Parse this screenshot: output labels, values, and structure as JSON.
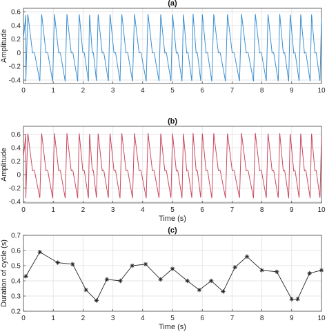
{
  "chart_data": [
    {
      "type": "line",
      "title": "(a)",
      "xlabel": "",
      "ylabel": "Amplitude",
      "xlim": [
        0,
        10
      ],
      "ylim": [
        -0.45,
        0.65
      ],
      "xticks": [
        "0",
        "1",
        "2",
        "3",
        "4",
        "5",
        "6",
        "7",
        "8",
        "9",
        "10"
      ],
      "yticks": [
        "-0.4",
        "-0.2",
        "0",
        "0.2",
        "0.4",
        "0.6"
      ],
      "grid": true,
      "color": "#3b8fd1",
      "beats": [
        0.08,
        0.55,
        0.98,
        1.4,
        1.82,
        2.18,
        2.45,
        2.85,
        3.24,
        3.66,
        4.12,
        4.55,
        4.95,
        5.32,
        5.65,
        5.95,
        6.32,
        6.78,
        7.25,
        7.72,
        8.15,
        8.55,
        8.9,
        9.25,
        9.62,
        9.95
      ],
      "peak": 0.57,
      "trough": -0.42
    },
    {
      "type": "line",
      "title": "(b)",
      "xlabel": "Time (s)",
      "ylabel": "Amplitude",
      "xlim": [
        0,
        10
      ],
      "ylim": [
        -0.42,
        0.72
      ],
      "xticks": [
        "0",
        "1",
        "2",
        "3",
        "4",
        "5",
        "6",
        "7",
        "8",
        "9",
        "10"
      ],
      "yticks": [
        "-0.4",
        "-0.2",
        "0",
        "0.2",
        "0.4",
        "0.6"
      ],
      "grid": true,
      "color": "#c8485f",
      "beats": [
        0.08,
        0.55,
        0.98,
        1.4,
        1.82,
        2.18,
        2.45,
        2.85,
        3.24,
        3.66,
        4.12,
        4.55,
        4.95,
        5.32,
        5.65,
        5.95,
        6.32,
        6.78,
        7.25,
        7.72,
        8.15,
        8.55,
        8.9,
        9.25,
        9.62,
        9.95
      ],
      "peak": 0.62,
      "trough": -0.35
    },
    {
      "type": "line",
      "title": "(c)",
      "xlabel": "Time (s)",
      "ylabel": "Duration of cycle (s)",
      "xlim": [
        0,
        10
      ],
      "ylim": [
        0.2,
        0.7
      ],
      "xticks": [
        "0",
        "1",
        "2",
        "3",
        "4",
        "5",
        "6",
        "7",
        "8",
        "9",
        "10"
      ],
      "yticks": [
        "0.2",
        "0.3",
        "0.4",
        "0.5",
        "0.6",
        "0.7"
      ],
      "grid": true,
      "color": "#222222",
      "marker": "asterisk",
      "x": [
        0.08,
        0.55,
        1.15,
        1.65,
        2.1,
        2.45,
        2.8,
        3.25,
        3.65,
        4.1,
        4.6,
        5.0,
        5.5,
        5.9,
        6.3,
        6.7,
        7.1,
        7.5,
        8.0,
        8.5,
        9.0,
        9.2,
        9.6,
        10.0
      ],
      "y": [
        0.43,
        0.59,
        0.52,
        0.51,
        0.34,
        0.27,
        0.41,
        0.4,
        0.5,
        0.51,
        0.41,
        0.48,
        0.4,
        0.34,
        0.4,
        0.33,
        0.49,
        0.56,
        0.47,
        0.46,
        0.28,
        0.28,
        0.45,
        0.47
      ]
    }
  ]
}
